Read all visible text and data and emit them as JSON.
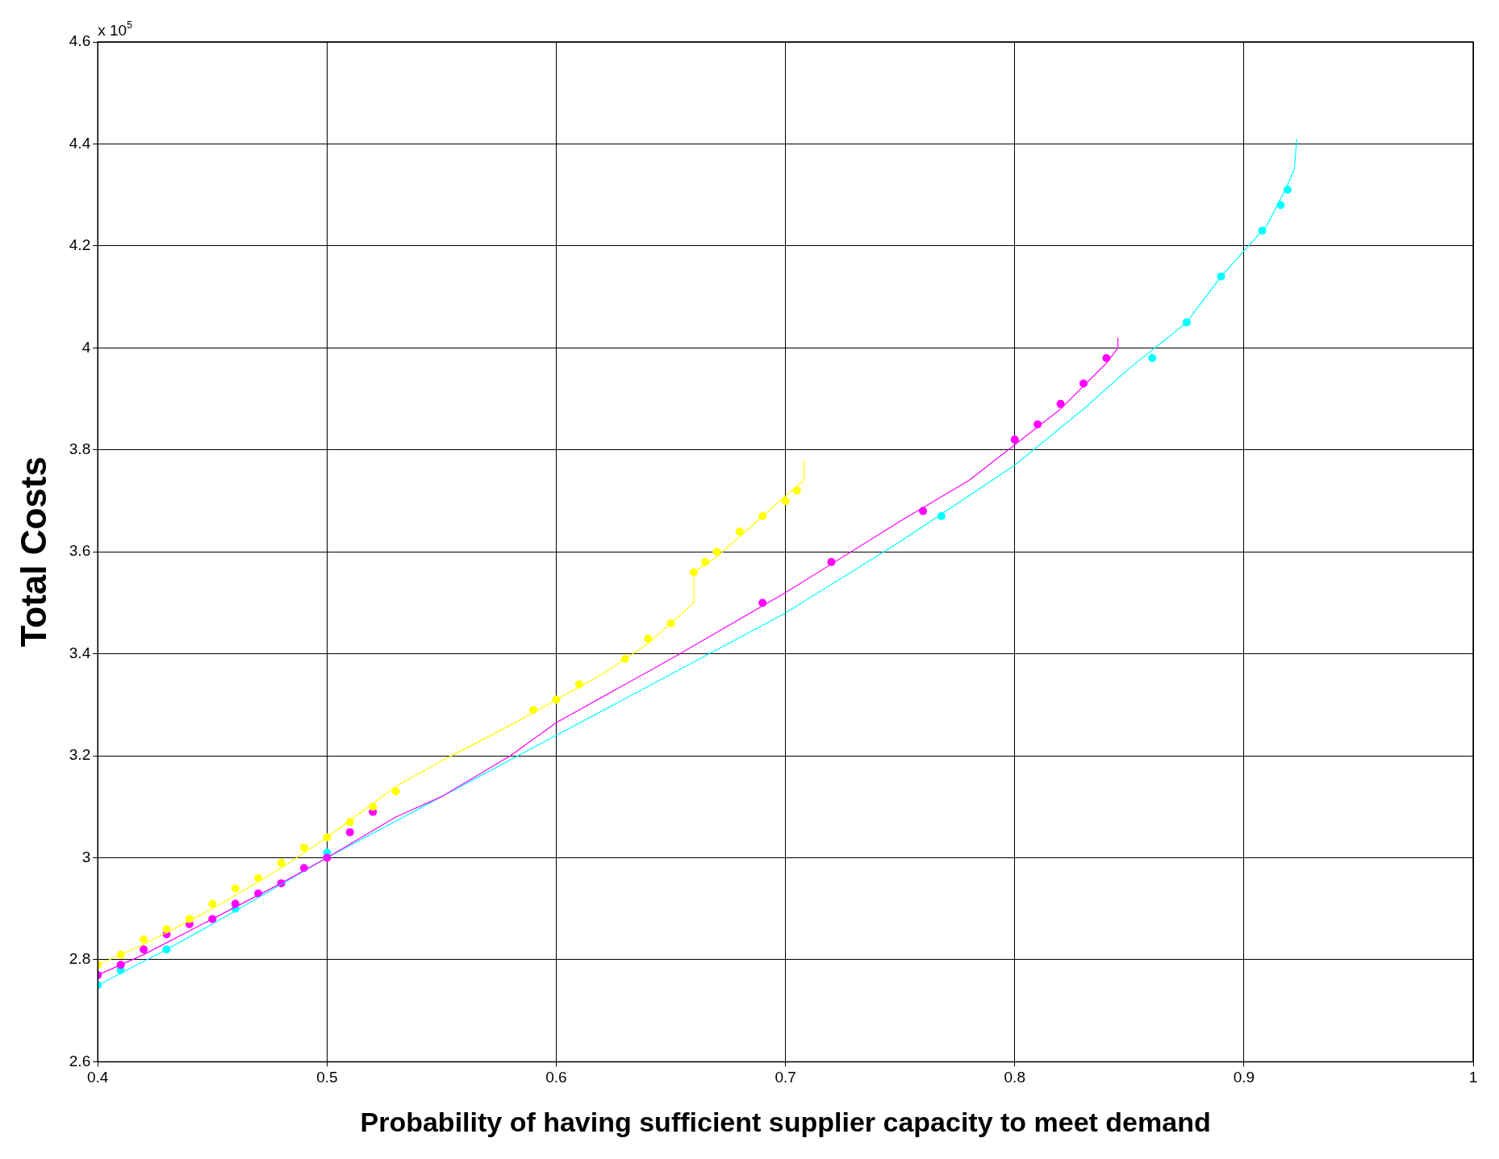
{
  "chart_data": {
    "type": "line",
    "xlabel": "Probability of having sufficient supplier capacity to meet demand",
    "ylabel": "Total Costs",
    "annotations": [
      "x 10$^{5}$"
    ],
    "xlim": [
      0.4,
      1
    ],
    "xticks": [
      0.4,
      0.5,
      0.6,
      0.7,
      0.8,
      0.9,
      1
    ],
    "ylim": [
      2.6,
      4.6
    ],
    "yticks": [
      2.6,
      2.8,
      3,
      3.2,
      3.4,
      3.6,
      3.8,
      4,
      4.2,
      4.4,
      4.6
    ],
    "grid": true,
    "legend": false,
    "line_style": "solid",
    "series": [
      {
        "type": "line",
        "marker": "none",
        "color": "#ffff00",
        "x": [
          0.4,
          0.42,
          0.45,
          0.48,
          0.5,
          0.53,
          0.55,
          0.58,
          0.6,
          0.62,
          0.64,
          0.65,
          0.66,
          0.66,
          0.67,
          0.68,
          0.69,
          0.7,
          0.708,
          0.708
        ],
        "values": [
          2.79,
          2.83,
          2.9,
          2.98,
          3.04,
          3.14,
          3.19,
          3.26,
          3.31,
          3.36,
          3.42,
          3.46,
          3.5,
          3.56,
          3.59,
          3.63,
          3.67,
          3.71,
          3.74,
          3.78
        ]
      },
      {
        "type": "line",
        "marker": "none",
        "color": "#ff00ff",
        "x": [
          0.4,
          0.42,
          0.45,
          0.48,
          0.5,
          0.53,
          0.55,
          0.58,
          0.6,
          0.65,
          0.7,
          0.75,
          0.78,
          0.8,
          0.82,
          0.84,
          0.845,
          0.845
        ],
        "values": [
          2.77,
          2.81,
          2.88,
          2.95,
          3.0,
          3.08,
          3.12,
          3.2,
          3.265,
          3.39,
          3.52,
          3.66,
          3.74,
          3.81,
          3.88,
          3.97,
          4.0,
          4.02
        ]
      },
      {
        "type": "line",
        "marker": "none",
        "color": "#00ffff",
        "x": [
          0.4,
          0.43,
          0.45,
          0.5,
          0.6,
          0.65,
          0.7,
          0.75,
          0.78,
          0.8,
          0.83,
          0.85,
          0.875,
          0.89,
          0.9,
          0.91,
          0.918,
          0.922,
          0.923
        ],
        "values": [
          2.75,
          2.82,
          2.87,
          3.0,
          3.24,
          3.36,
          3.48,
          3.62,
          3.71,
          3.77,
          3.88,
          3.96,
          4.05,
          4.14,
          4.19,
          4.24,
          4.31,
          4.35,
          4.41
        ]
      },
      {
        "type": "scatter",
        "marker": "circle",
        "color": "#ffff00",
        "x": [
          0.4,
          0.41,
          0.42,
          0.43,
          0.44,
          0.45,
          0.46,
          0.47,
          0.48,
          0.49,
          0.5,
          0.51,
          0.52,
          0.53,
          0.59,
          0.6,
          0.61,
          0.63,
          0.64,
          0.65,
          0.66,
          0.665,
          0.67,
          0.68,
          0.69,
          0.7,
          0.705
        ],
        "values": [
          2.79,
          2.81,
          2.84,
          2.86,
          2.88,
          2.91,
          2.94,
          2.96,
          2.99,
          3.02,
          3.04,
          3.07,
          3.1,
          3.13,
          3.29,
          3.31,
          3.34,
          3.39,
          3.43,
          3.46,
          3.56,
          3.58,
          3.6,
          3.64,
          3.67,
          3.7,
          3.72
        ]
      },
      {
        "type": "scatter",
        "marker": "circle",
        "color": "#ff00ff",
        "x": [
          0.4,
          0.41,
          0.42,
          0.43,
          0.44,
          0.45,
          0.46,
          0.47,
          0.48,
          0.49,
          0.5,
          0.51,
          0.52,
          0.69,
          0.72,
          0.76,
          0.8,
          0.81,
          0.82,
          0.83,
          0.84
        ],
        "values": [
          2.77,
          2.79,
          2.82,
          2.85,
          2.87,
          2.88,
          2.91,
          2.93,
          2.95,
          2.98,
          3.0,
          3.05,
          3.09,
          3.5,
          3.58,
          3.68,
          3.82,
          3.85,
          3.89,
          3.93,
          3.98
        ]
      },
      {
        "type": "scatter",
        "marker": "circle",
        "color": "#00ffff",
        "x": [
          0.4,
          0.41,
          0.43,
          0.46,
          0.5,
          0.768,
          0.86,
          0.875,
          0.89,
          0.908,
          0.916,
          0.919
        ],
        "values": [
          2.75,
          2.78,
          2.82,
          2.9,
          3.01,
          3.67,
          3.98,
          4.05,
          4.14,
          4.23,
          4.28,
          4.31
        ]
      }
    ]
  }
}
